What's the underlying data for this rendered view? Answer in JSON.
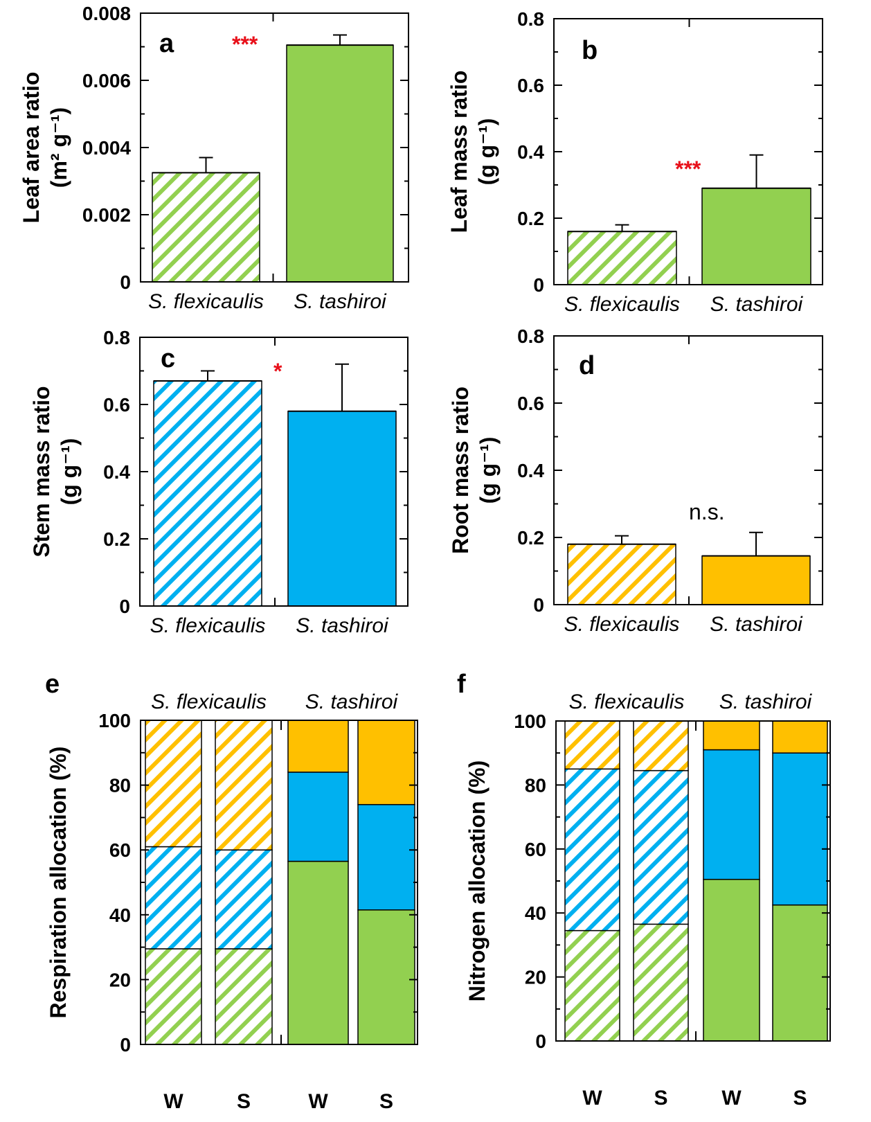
{
  "colors": {
    "leaf": "#92d050",
    "stem": "#00b0f0",
    "root": "#ffc000",
    "significance": "#e8101a"
  },
  "chart_data": [
    {
      "panel": "a",
      "type": "bar",
      "categories": [
        "S. flexicaulis",
        "S. tashiroi"
      ],
      "patterns": [
        "hatched",
        "solid"
      ],
      "component": "leaf",
      "values": [
        0.00325,
        0.00705
      ],
      "errors": [
        0.00045,
        0.0003
      ],
      "ylabel": "Leaf area ratio",
      "yunit": "(m² g⁻¹)",
      "ylim": [
        0,
        0.008
      ],
      "yticks": [
        0,
        0.002,
        0.004,
        0.006,
        0.008
      ],
      "yticklabels": [
        "0",
        "0.002",
        "0.004",
        "0.006",
        "0.008"
      ],
      "significance": "***"
    },
    {
      "panel": "b",
      "type": "bar",
      "categories": [
        "S. flexicaulis",
        "S. tashiroi"
      ],
      "patterns": [
        "hatched",
        "solid"
      ],
      "component": "leaf",
      "values": [
        0.16,
        0.29
      ],
      "errors": [
        0.02,
        0.1
      ],
      "ylabel": "Leaf mass ratio",
      "yunit": "(g g⁻¹)",
      "ylim": [
        0,
        0.8
      ],
      "yticks": [
        0,
        0.2,
        0.4,
        0.6,
        0.8
      ],
      "yticklabels": [
        "0",
        "0.2",
        "0.4",
        "0.6",
        "0.8"
      ],
      "significance": "***"
    },
    {
      "panel": "c",
      "type": "bar",
      "categories": [
        "S. flexicaulis",
        "S. tashiroi"
      ],
      "patterns": [
        "hatched",
        "solid"
      ],
      "component": "stem",
      "values": [
        0.67,
        0.58
      ],
      "errors": [
        0.03,
        0.14
      ],
      "ylabel": "Stem mass ratio",
      "yunit": "(g g⁻¹)",
      "ylim": [
        0,
        0.8
      ],
      "yticks": [
        0,
        0.2,
        0.4,
        0.6,
        0.8
      ],
      "yticklabels": [
        "0",
        "0.2",
        "0.4",
        "0.6",
        "0.8"
      ],
      "significance": "*"
    },
    {
      "panel": "d",
      "type": "bar",
      "categories": [
        "S. flexicaulis",
        "S. tashiroi"
      ],
      "patterns": [
        "hatched",
        "solid"
      ],
      "component": "root",
      "values": [
        0.18,
        0.145
      ],
      "errors": [
        0.025,
        0.07
      ],
      "ylabel": "Root mass ratio",
      "yunit": "(g g⁻¹)",
      "ylim": [
        0,
        0.8
      ],
      "yticks": [
        0,
        0.2,
        0.4,
        0.6,
        0.8
      ],
      "yticklabels": [
        "0",
        "0.2",
        "0.4",
        "0.6",
        "0.8"
      ],
      "significance": "n.s."
    },
    {
      "panel": "e",
      "type": "bar",
      "stacked": true,
      "species": [
        "S. flexicaulis",
        "S. tashiroi"
      ],
      "categories": [
        "W",
        "S",
        "W",
        "S"
      ],
      "patterns": [
        "hatched",
        "hatched",
        "solid",
        "solid"
      ],
      "series": [
        {
          "component": "leaf",
          "values": [
            29.5,
            29.5,
            56.5,
            41.5
          ]
        },
        {
          "component": "stem",
          "values": [
            31.5,
            30.5,
            27.5,
            32.5
          ]
        },
        {
          "component": "root",
          "values": [
            39,
            40,
            16,
            26
          ]
        }
      ],
      "ylabel": "Respiration allocation (%)",
      "ylim": [
        0,
        100
      ],
      "yticks": [
        0,
        20,
        40,
        60,
        80,
        100
      ],
      "yticklabels": [
        "0",
        "20",
        "40",
        "60",
        "80",
        "100"
      ]
    },
    {
      "panel": "f",
      "type": "bar",
      "stacked": true,
      "species": [
        "S. flexicaulis",
        "S. tashiroi"
      ],
      "categories": [
        "W",
        "S",
        "W",
        "S"
      ],
      "patterns": [
        "hatched",
        "hatched",
        "solid",
        "solid"
      ],
      "series": [
        {
          "component": "leaf",
          "values": [
            34.5,
            36.5,
            50.5,
            42.5
          ]
        },
        {
          "component": "stem",
          "values": [
            50.5,
            48,
            40.5,
            47.5
          ]
        },
        {
          "component": "root",
          "values": [
            15,
            15.5,
            9,
            10
          ]
        }
      ],
      "ylabel": "Nitrogen allocation (%)",
      "ylim": [
        0,
        100
      ],
      "yticks": [
        0,
        20,
        40,
        60,
        80,
        100
      ],
      "yticklabels": [
        "0",
        "20",
        "40",
        "60",
        "80",
        "100"
      ]
    }
  ]
}
